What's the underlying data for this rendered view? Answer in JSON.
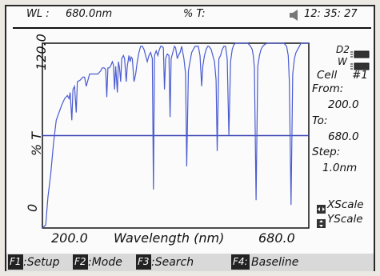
{
  "header": {
    "wl_label": "WL :",
    "wl_value": "680.0nm",
    "t_label": "% T:",
    "speaker_icon": "speaker-icon",
    "time": "12: 35: 27"
  },
  "plot": {
    "y_axis_label": "% T",
    "y_top_tick": "120.0",
    "y_bottom_tick": "0",
    "x_left_tick": "200.0",
    "x_right_tick": "680.0",
    "x_axis_label": "Wavelength (nm)",
    "cursor_line_color": "#3a45b5",
    "trace_color": "#4a5bd0"
  },
  "side_panel": {
    "lamp1": "D2",
    "lamp2": "W",
    "cell_label": "Cell",
    "cell_value": "#1",
    "from_label": "From:",
    "from_value": "200.0",
    "to_label": "To:",
    "to_value": "680.0",
    "step_label": "Step:",
    "step_value": "1.0nm",
    "xscale_label": "XScale",
    "yscale_label": "YScale"
  },
  "footer": {
    "f1_key": "F1",
    "f1_label": ":Setup",
    "f2_key": "F2",
    "f2_label": ":Mode",
    "f3_key": "F3",
    "f3_label": ":Search",
    "f4_key": "F4:",
    "f4_label": "Baseline"
  },
  "chart_data": {
    "type": "line",
    "xlabel": "Wavelength (nm)",
    "ylabel": "% T",
    "xlim": [
      200.0,
      680.0
    ],
    "ylim": [
      0,
      120.0
    ],
    "cursor_y": 60,
    "series": [
      {
        "values": [
          [
            200,
            0
          ],
          [
            206,
            2
          ],
          [
            210,
            20
          ],
          [
            215,
            35
          ],
          [
            220,
            55
          ],
          [
            225,
            70
          ],
          [
            230,
            75
          ],
          [
            235,
            80
          ],
          [
            240,
            84
          ],
          [
            245,
            86
          ],
          [
            248,
            84
          ],
          [
            250,
            88
          ],
          [
            253,
            70
          ],
          [
            255,
            90
          ],
          [
            258,
            92
          ],
          [
            261,
            75
          ],
          [
            263,
            95
          ],
          [
            268,
            96
          ],
          [
            273,
            98
          ],
          [
            276,
            98
          ],
          [
            279,
            92
          ],
          [
            282,
            96
          ],
          [
            285,
            100
          ],
          [
            290,
            100
          ],
          [
            295,
            100
          ],
          [
            300,
            100
          ],
          [
            305,
            102
          ],
          [
            308,
            104
          ],
          [
            311,
            104
          ],
          [
            314,
            103
          ],
          [
            316,
            85
          ],
          [
            318,
            104
          ],
          [
            321,
            104
          ],
          [
            324,
            106
          ],
          [
            326,
            108
          ],
          [
            328,
            106
          ],
          [
            330,
            90
          ],
          [
            332,
            105
          ],
          [
            335,
            88
          ],
          [
            337,
            108
          ],
          [
            339,
            104
          ],
          [
            341,
            95
          ],
          [
            343,
            110
          ],
          [
            346,
            112
          ],
          [
            348,
            110
          ],
          [
            351,
            95
          ],
          [
            353,
            105
          ],
          [
            356,
            112
          ],
          [
            358,
            108
          ],
          [
            360,
            111
          ],
          [
            362,
            110
          ],
          [
            365,
            95
          ],
          [
            368,
            100
          ],
          [
            371,
            108
          ],
          [
            374,
            114
          ],
          [
            377,
            118
          ],
          [
            380,
            118
          ],
          [
            383,
            116
          ],
          [
            386,
            112
          ],
          [
            389,
            108
          ],
          [
            392,
            112
          ],
          [
            395,
            114
          ],
          [
            398,
            110
          ],
          [
            400,
            25
          ],
          [
            402,
            112
          ],
          [
            405,
            115
          ],
          [
            408,
            112
          ],
          [
            410,
            115
          ],
          [
            413,
            118
          ],
          [
            415,
            118
          ],
          [
            418,
            117
          ],
          [
            420,
            90
          ],
          [
            422,
            110
          ],
          [
            425,
            113
          ],
          [
            428,
            112
          ],
          [
            430,
            72
          ],
          [
            432,
            110
          ],
          [
            435,
            114
          ],
          [
            438,
            118
          ],
          [
            440,
            117
          ],
          [
            443,
            110
          ],
          [
            445,
            112
          ],
          [
            448,
            114
          ],
          [
            451,
            118
          ],
          [
            455,
            110
          ],
          [
            458,
            100
          ],
          [
            460,
            40
          ],
          [
            463,
            102
          ],
          [
            466,
            108
          ],
          [
            469,
            114
          ],
          [
            472,
            116
          ],
          [
            475,
            118
          ],
          [
            478,
            118
          ],
          [
            481,
            118
          ],
          [
            484,
            112
          ],
          [
            487,
            92
          ],
          [
            489,
            105
          ],
          [
            492,
            112
          ],
          [
            495,
            116
          ],
          [
            498,
            118
          ],
          [
            500,
            118
          ],
          [
            504,
            116
          ],
          [
            507,
            112
          ],
          [
            510,
            108
          ],
          [
            513,
            96
          ],
          [
            515,
            50
          ],
          [
            518,
            110
          ],
          [
            521,
            112
          ],
          [
            524,
            116
          ],
          [
            527,
            118
          ],
          [
            530,
            118
          ],
          [
            533,
            110
          ],
          [
            536,
            60
          ],
          [
            539,
            108
          ],
          [
            542,
            116
          ],
          [
            545,
            119
          ],
          [
            548,
            120
          ],
          [
            555,
            120
          ],
          [
            560,
            120
          ],
          [
            565,
            120
          ],
          [
            570,
            120
          ],
          [
            575,
            118
          ],
          [
            578,
            116
          ],
          [
            580,
            112
          ],
          [
            582,
            104
          ],
          [
            585,
            18
          ],
          [
            588,
            105
          ],
          [
            591,
            112
          ],
          [
            594,
            116
          ],
          [
            597,
            118
          ],
          [
            600,
            119
          ],
          [
            605,
            120
          ],
          [
            610,
            120
          ],
          [
            615,
            120
          ],
          [
            620,
            120
          ],
          [
            625,
            120
          ],
          [
            630,
            120
          ],
          [
            635,
            120
          ],
          [
            640,
            118
          ],
          [
            643,
            112
          ],
          [
            645,
            95
          ],
          [
            648,
            15
          ],
          [
            651,
            100
          ],
          [
            654,
            110
          ],
          [
            657,
            114
          ],
          [
            660,
            116
          ],
          [
            663,
            118
          ],
          [
            666,
            120
          ],
          [
            670,
            120
          ],
          [
            674,
            120
          ],
          [
            677,
            120
          ],
          [
            680,
            120
          ]
        ]
      }
    ]
  }
}
